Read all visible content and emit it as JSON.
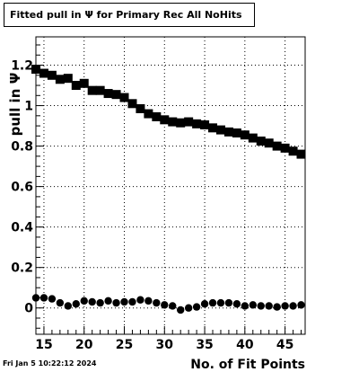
{
  "title": "Fitted pull in  Ψ  for Primary Rec All NoHits",
  "datestamp": "Fri Jan  5 10:22:12 2024",
  "chart_data": {
    "type": "scatter",
    "title": "Fitted pull in  Ψ  for Primary Rec All NoHits",
    "xlabel": "No. of Fit Points",
    "ylabel": "pull in  Ψ",
    "xlim": [
      14,
      47.5
    ],
    "ylim": [
      -0.13,
      1.34
    ],
    "grid": true,
    "x_ticks": [
      15,
      20,
      25,
      30,
      35,
      40,
      45
    ],
    "y_ticks": [
      0,
      0.2,
      0.4,
      0.6,
      0.8,
      1,
      1.2
    ],
    "x_tick_labels": [
      "15",
      "20",
      "25",
      "30",
      "35",
      "40",
      "45"
    ],
    "y_tick_labels": [
      "0",
      "0.2",
      "0.4",
      "0.6",
      "0.8",
      "1",
      "1.2"
    ],
    "x": [
      14,
      15,
      16,
      17,
      18,
      19,
      20,
      21,
      22,
      23,
      24,
      25,
      26,
      27,
      28,
      29,
      30,
      31,
      32,
      33,
      34,
      35,
      36,
      37,
      38,
      39,
      40,
      41,
      42,
      43,
      44,
      45,
      46,
      47
    ],
    "series": [
      {
        "marker": "square",
        "values": [
          1.18,
          1.16,
          1.15,
          1.13,
          1.135,
          1.1,
          1.11,
          1.075,
          1.075,
          1.06,
          1.055,
          1.04,
          1.01,
          0.985,
          0.96,
          0.945,
          0.93,
          0.92,
          0.915,
          0.92,
          0.91,
          0.905,
          0.89,
          0.88,
          0.87,
          0.865,
          0.855,
          0.84,
          0.825,
          0.815,
          0.8,
          0.79,
          0.775,
          0.76
        ]
      },
      {
        "marker": "circle",
        "values": [
          0.05,
          0.05,
          0.045,
          0.025,
          0.01,
          0.02,
          0.035,
          0.03,
          0.025,
          0.035,
          0.025,
          0.03,
          0.03,
          0.04,
          0.035,
          0.025,
          0.015,
          0.01,
          -0.01,
          0.0,
          0.005,
          0.02,
          0.025,
          0.025,
          0.025,
          0.02,
          0.01,
          0.015,
          0.01,
          0.01,
          0.005,
          0.01,
          0.01,
          0.015
        ]
      }
    ]
  }
}
